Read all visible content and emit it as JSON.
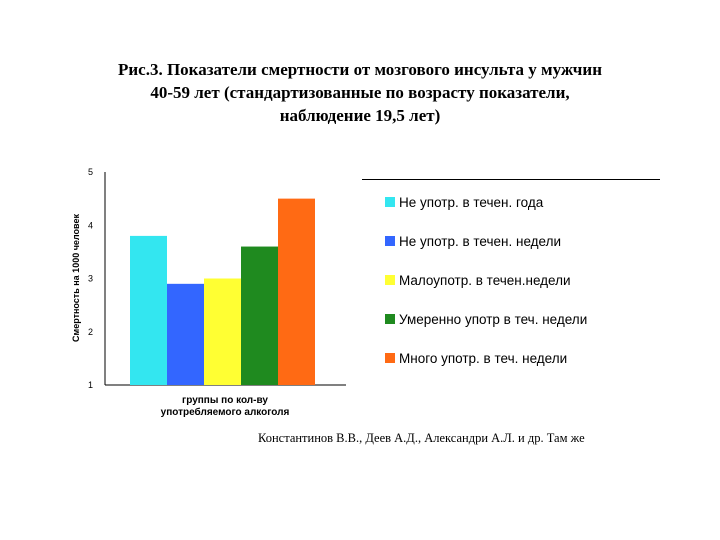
{
  "title": {
    "line1": "Рис.3. Показатели смертности от мозгового инсульта у мужчин",
    "line2": "40-59 лет (стандартизованные по возрасту показатели,",
    "line3": "наблюдение 19,5 лет)"
  },
  "source": "Константинов В.В., Деев А.Д., Александри А.Л. и др. Там же",
  "chart_data": {
    "type": "bar",
    "ylabel": "Смертность на 1000 человек",
    "xlabel_line1": "группы по кол-ву",
    "xlabel_line2": "употребляемого алкоголя",
    "ylim": [
      1,
      5
    ],
    "yticks": [
      "1",
      "2",
      "3",
      "4",
      "5"
    ],
    "grid": false,
    "legend_position": "right",
    "series": [
      {
        "name": "Не употр. в течен. года",
        "value": 3.8,
        "color": "#33e6f0"
      },
      {
        "name": "Не употр. в течен. недели",
        "value": 2.9,
        "color": "#3366ff"
      },
      {
        "name": "Малоупотр. в течен.недели",
        "value": 3.0,
        "color": "#ffff33"
      },
      {
        "name": "Умеренно употр в теч. недели",
        "value": 3.6,
        "color": "#1f8a1f"
      },
      {
        "name": "Много употр. в теч. недели",
        "value": 4.5,
        "color": "#ff6a14"
      }
    ]
  }
}
